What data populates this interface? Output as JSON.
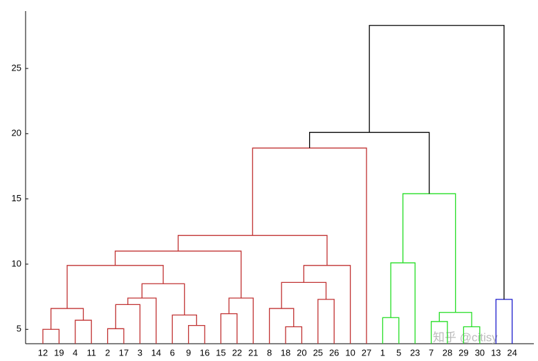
{
  "chart_data": {
    "type": "dendrogram",
    "ylim": [
      3.9,
      29.4
    ],
    "yticks": [
      5,
      10,
      15,
      20,
      25
    ],
    "watermark": "知乎 @citisy",
    "tree": {
      "height": 28.3,
      "color": "#000000",
      "children": [
        {
          "height": 20.1,
          "color": "#000000",
          "children": [
            {
              "height": 18.9,
              "color": "#c03030",
              "children": [
                {
                  "height": 12.2,
                  "color": "#c03030",
                  "children": [
                    {
                      "height": 11.0,
                      "color": "#c03030",
                      "children": [
                        {
                          "height": 9.9,
                          "color": "#c03030",
                          "children": [
                            {
                              "height": 6.6,
                              "color": "#c03030",
                              "children": [
                                {
                                  "height": 5.0,
                                  "color": "#c03030",
                                  "children": [
                                    {
                                      "label": "12"
                                    },
                                    {
                                      "label": "19"
                                    }
                                  ]
                                },
                                {
                                  "height": 5.7,
                                  "color": "#c03030",
                                  "children": [
                                    {
                                      "label": "4"
                                    },
                                    {
                                      "label": "11"
                                    }
                                  ]
                                }
                              ]
                            },
                            {
                              "height": 8.5,
                              "color": "#c03030",
                              "children": [
                                {
                                  "height": 7.4,
                                  "color": "#c03030",
                                  "children": [
                                    {
                                      "height": 6.9,
                                      "color": "#c03030",
                                      "children": [
                                        {
                                          "height": 5.05,
                                          "color": "#c03030",
                                          "children": [
                                            {
                                              "label": "2"
                                            },
                                            {
                                              "label": "17"
                                            }
                                          ]
                                        },
                                        {
                                          "label": "3"
                                        }
                                      ]
                                    },
                                    {
                                      "label": "14"
                                    }
                                  ]
                                },
                                {
                                  "height": 6.1,
                                  "color": "#c03030",
                                  "children": [
                                    {
                                      "label": "6"
                                    },
                                    {
                                      "height": 5.3,
                                      "color": "#c03030",
                                      "children": [
                                        {
                                          "label": "9"
                                        },
                                        {
                                          "label": "16"
                                        }
                                      ]
                                    }
                                  ]
                                }
                              ]
                            }
                          ]
                        },
                        {
                          "height": 7.4,
                          "color": "#c03030",
                          "children": [
                            {
                              "height": 6.2,
                              "color": "#c03030",
                              "children": [
                                {
                                  "label": "15"
                                },
                                {
                                  "label": "22"
                                }
                              ]
                            },
                            {
                              "label": "21"
                            }
                          ]
                        }
                      ]
                    },
                    {
                      "height": 9.9,
                      "color": "#c03030",
                      "children": [
                        {
                          "height": 8.6,
                          "color": "#c03030",
                          "children": [
                            {
                              "height": 6.6,
                              "color": "#c03030",
                              "children": [
                                {
                                  "label": "8"
                                },
                                {
                                  "height": 5.2,
                                  "color": "#c03030",
                                  "children": [
                                    {
                                      "label": "18"
                                    },
                                    {
                                      "label": "20"
                                    }
                                  ]
                                }
                              ]
                            },
                            {
                              "height": 7.3,
                              "color": "#c03030",
                              "children": [
                                {
                                  "label": "25"
                                },
                                {
                                  "label": "26"
                                }
                              ]
                            }
                          ]
                        },
                        {
                          "label": "10"
                        }
                      ]
                    }
                  ]
                },
                {
                  "label": "27"
                }
              ]
            },
            {
              "height": 15.4,
              "color": "#22dd22",
              "children": [
                {
                  "height": 10.1,
                  "color": "#22dd22",
                  "children": [
                    {
                      "height": 5.9,
                      "color": "#22dd22",
                      "children": [
                        {
                          "label": "1"
                        },
                        {
                          "label": "5"
                        }
                      ]
                    },
                    {
                      "label": "23"
                    }
                  ]
                },
                {
                  "height": 6.3,
                  "color": "#22dd22",
                  "children": [
                    {
                      "height": 5.6,
                      "color": "#22dd22",
                      "children": [
                        {
                          "label": "7"
                        },
                        {
                          "label": "28"
                        }
                      ]
                    },
                    {
                      "height": 5.2,
                      "color": "#22dd22",
                      "children": [
                        {
                          "label": "29"
                        },
                        {
                          "label": "30"
                        }
                      ]
                    }
                  ]
                }
              ]
            }
          ]
        },
        {
          "height": 7.3,
          "color": "#1a1acc",
          "children": [
            {
              "label": "13"
            },
            {
              "label": "24"
            }
          ]
        }
      ]
    }
  }
}
